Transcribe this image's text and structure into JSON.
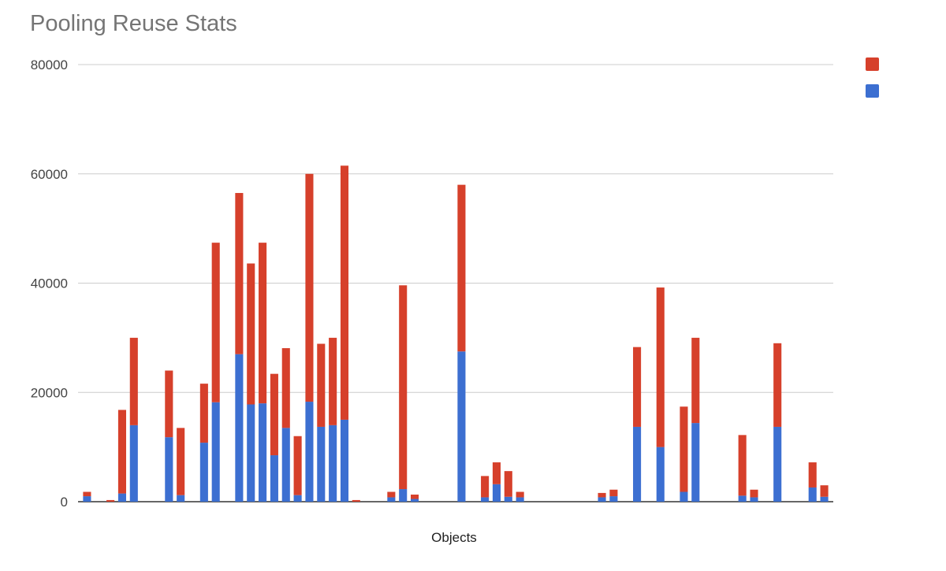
{
  "chart_data": {
    "type": "bar",
    "stacked": true,
    "title": "Pooling Reuse Stats",
    "xlabel": "Objects",
    "ylabel": "",
    "ylim": [
      0,
      80000
    ],
    "yticks": [
      0,
      20000,
      40000,
      60000,
      80000
    ],
    "ytick_labels": [
      "0",
      "20000",
      "40000",
      "60000",
      "80000"
    ],
    "grid": true,
    "legend_position": "right",
    "series": [
      {
        "name": "",
        "color": "#3c6fd1",
        "values": [
          1000,
          0,
          0,
          1500,
          14000,
          0,
          0,
          11800,
          1200,
          0,
          10800,
          18200,
          0,
          27000,
          17800,
          18000,
          8500,
          13500,
          1200,
          18300,
          13700,
          14000,
          15000,
          0,
          0,
          0,
          800,
          2300,
          500,
          0,
          0,
          0,
          27500,
          0,
          800,
          3200,
          900,
          800,
          0,
          0,
          0,
          0,
          0,
          0,
          800,
          1000,
          0,
          13700,
          0,
          10000,
          0,
          1800,
          14400,
          0,
          0,
          0,
          1100,
          800,
          0,
          13700,
          0,
          0,
          2600,
          900
        ]
      },
      {
        "name": "",
        "color": "#d6402b",
        "values": [
          800,
          0,
          300,
          15300,
          16000,
          0,
          0,
          12200,
          12300,
          0,
          10800,
          29200,
          0,
          29500,
          25800,
          29400,
          14900,
          14600,
          10800,
          41700,
          15200,
          16000,
          46500,
          300,
          0,
          0,
          1000,
          37300,
          800,
          0,
          0,
          0,
          30500,
          0,
          3900,
          4000,
          4700,
          1000,
          0,
          0,
          0,
          0,
          0,
          0,
          800,
          1200,
          0,
          14600,
          0,
          29200,
          0,
          15600,
          15600,
          0,
          0,
          0,
          11100,
          1400,
          0,
          15300,
          0,
          0,
          4600,
          2100
        ]
      }
    ]
  }
}
